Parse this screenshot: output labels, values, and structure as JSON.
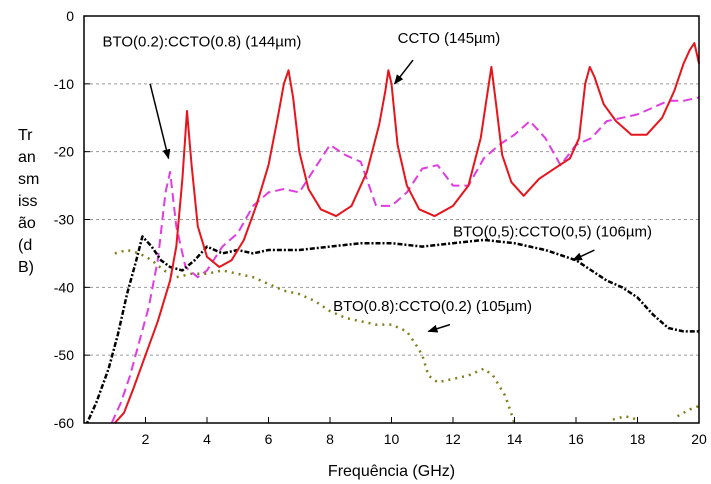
{
  "chart_data": {
    "type": "line",
    "xlabel": "Frequência (GHz)",
    "ylabel_lines": [
      "Tr",
      "an",
      "sm",
      "iss",
      "ão",
      "(d",
      "B)"
    ],
    "xlim": [
      0,
      20
    ],
    "ylim": [
      -60,
      0
    ],
    "xticks": [
      2,
      4,
      6,
      8,
      10,
      12,
      14,
      16,
      18,
      20
    ],
    "yticks": [
      0,
      -10,
      -20,
      -30,
      -40,
      -50,
      -60
    ],
    "grid": "horizontal dashed",
    "series": [
      {
        "name": "CCTO (145µm)",
        "color": "#e8141c",
        "style": "solid",
        "x": [
          1.0,
          1.3,
          1.6,
          2.0,
          2.4,
          2.8,
          3.0,
          3.2,
          3.35,
          3.5,
          3.7,
          4.0,
          4.4,
          4.8,
          5.2,
          5.6,
          6.0,
          6.3,
          6.5,
          6.65,
          6.8,
          7.0,
          7.3,
          7.7,
          8.2,
          8.7,
          9.2,
          9.6,
          9.8,
          9.9,
          10.0,
          10.2,
          10.5,
          10.9,
          11.4,
          12.0,
          12.5,
          12.9,
          13.1,
          13.25,
          13.4,
          13.6,
          13.9,
          14.3,
          14.8,
          15.3,
          15.8,
          16.1,
          16.3,
          16.45,
          16.6,
          16.9,
          17.3,
          17.8,
          18.3,
          18.8,
          19.2,
          19.5,
          19.7,
          19.85,
          20.0
        ],
        "y": [
          -60,
          -58.5,
          -55,
          -50,
          -45,
          -39,
          -34,
          -24,
          -14,
          -22,
          -31,
          -35.5,
          -37,
          -36,
          -33,
          -28,
          -22,
          -15,
          -10,
          -8,
          -12,
          -20,
          -25.5,
          -28.5,
          -29.5,
          -28,
          -23,
          -16,
          -11,
          -8,
          -10,
          -19,
          -25,
          -28.5,
          -29.5,
          -28,
          -25,
          -18,
          -12,
          -7.5,
          -13,
          -20.5,
          -24.5,
          -26.5,
          -24,
          -22.5,
          -21,
          -18,
          -10,
          -7.5,
          -9,
          -13,
          -15.5,
          -17.5,
          -17.5,
          -15,
          -11,
          -7,
          -5,
          -4,
          -7
        ]
      },
      {
        "name": "BTO(0.2):CCTO(0.8) (144µm)",
        "color": "#e13ce1",
        "style": "dashed",
        "x": [
          0.9,
          1.2,
          1.5,
          1.8,
          2.1,
          2.4,
          2.65,
          2.8,
          3.0,
          3.3,
          3.7,
          4.0,
          4.5,
          5.0,
          5.5,
          6.0,
          6.5,
          7.0,
          7.5,
          8.0,
          8.5,
          9.0,
          9.5,
          10.0,
          10.5,
          11.0,
          11.5,
          12.0,
          12.5,
          13.0,
          13.5,
          14.0,
          14.5,
          15.0,
          15.5,
          16.0,
          16.5,
          17.0,
          17.5,
          18.0,
          18.5,
          19.0,
          19.5,
          20.0
        ],
        "y": [
          -60,
          -57,
          -53,
          -48,
          -43,
          -36,
          -26,
          -23,
          -31,
          -37,
          -38.5,
          -37.5,
          -34,
          -32,
          -28,
          -26,
          -25.5,
          -26,
          -22.5,
          -19,
          -20.5,
          -21.5,
          -28,
          -28,
          -26,
          -22.5,
          -22,
          -25,
          -25,
          -21,
          -19,
          -17.5,
          -15.5,
          -18,
          -22,
          -19,
          -18,
          -15.5,
          -15,
          -14.5,
          -13.5,
          -12.5,
          -12.5,
          -12
        ]
      },
      {
        "name": "BTO(0,5):CCTO(0,5) (106µm)",
        "color": "#000000",
        "style": "dashdot",
        "x": [
          0.1,
          0.4,
          0.8,
          1.1,
          1.4,
          1.7,
          1.9,
          2.2,
          2.5,
          2.8,
          3.2,
          3.6,
          4.0,
          4.5,
          5.0,
          5.5,
          6.0,
          7.0,
          8.0,
          9.0,
          10.0,
          11.0,
          12.0,
          13.0,
          14.0,
          15.0,
          16.0,
          17.0,
          17.5,
          18.0,
          18.5,
          19.0,
          19.5,
          20.0
        ],
        "y": [
          -60,
          -57,
          -52,
          -47,
          -41,
          -36,
          -32.5,
          -34,
          -36,
          -37,
          -37.5,
          -36,
          -34,
          -35,
          -34.5,
          -35,
          -34.5,
          -34.5,
          -34,
          -33.5,
          -33.5,
          -34,
          -33.5,
          -33,
          -33.5,
          -34.5,
          -36,
          -39,
          -40,
          -41.5,
          -44,
          -46,
          -46.5,
          -46.5
        ]
      },
      {
        "name": "BTO(0.8):CCTO(0.2) (105µm)",
        "color": "#7f7f1e",
        "style": "dotted",
        "x": [
          1.0,
          1.4,
          1.8,
          2.2,
          2.6,
          3.0,
          3.5,
          4.0,
          4.5,
          5.0,
          5.5,
          6.0,
          6.5,
          7.0,
          7.5,
          8.0,
          8.5,
          9.0,
          9.5,
          10.0,
          10.5,
          10.8,
          11.0,
          11.2,
          11.5,
          12.0,
          12.5,
          13.0,
          13.3,
          13.7,
          14.0
        ],
        "y": [
          -35,
          -34.5,
          -35,
          -36,
          -37.5,
          -38.5,
          -38,
          -38,
          -37.5,
          -38,
          -38.5,
          -39.5,
          -40.5,
          -41,
          -42,
          -43.5,
          -44.5,
          -45,
          -45.5,
          -45.5,
          -46.5,
          -48.5,
          -50,
          -53,
          -54,
          -53.5,
          -53,
          -52,
          -53,
          -56,
          -60
        ]
      }
    ],
    "tail_segments": [
      {
        "color": "#7f7f1e",
        "x": [
          17.2,
          17.6,
          18.0
        ],
        "y": [
          -59.5,
          -59,
          -59.5
        ]
      },
      {
        "color": "#7f7f1e",
        "x": [
          19.3,
          19.7,
          20.0
        ],
        "y": [
          -59,
          -58,
          -57.5
        ]
      }
    ],
    "annotations": [
      {
        "label": "BTO(0.2):CCTO(0.8) (144µm)",
        "text_x": 0.6,
        "text_y": -4.5,
        "arrow_from": [
          2.15,
          -10
        ],
        "arrow_to": [
          2.75,
          -21
        ]
      },
      {
        "label": "CCTO (145µm)",
        "text_x": 10.2,
        "text_y": -4.0,
        "arrow_from": [
          10.7,
          -6.5
        ],
        "arrow_to": [
          10.1,
          -10
        ]
      },
      {
        "label": "BTO(0,5):CCTO(0,5) (106µm)",
        "text_x": 12.0,
        "text_y": -32.5,
        "arrow_from": [
          16.6,
          -34.5
        ],
        "arrow_to": [
          15.9,
          -36
        ]
      },
      {
        "label": "BTO(0.8):CCTO(0.2) (105µm)",
        "text_x": 8.1,
        "text_y": -43.5,
        "arrow_from": [
          11.9,
          -45.5
        ],
        "arrow_to": [
          11.2,
          -46.5
        ]
      }
    ]
  }
}
